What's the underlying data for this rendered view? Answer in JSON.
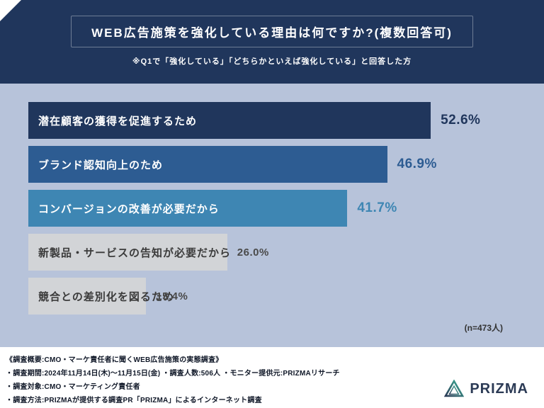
{
  "header": {
    "title": "WEB広告施策を強化している理由は何ですか?(複数回答可)",
    "subtitle": "※Q1で「強化している」「どちらかといえば強化している」と回答した方"
  },
  "chart_data": {
    "type": "bar",
    "orientation": "horizontal",
    "title": "WEB広告施策を強化している理由は何ですか?(複数回答可)",
    "categories": [
      "潜在顧客の獲得を促進するため",
      "ブランド認知向上のため",
      "コンバージョンの改善が必要だから",
      "新製品・サービスの告知が必要だから",
      "競合との差別化を図るため"
    ],
    "values": [
      52.6,
      46.9,
      41.7,
      26.0,
      15.4
    ],
    "value_labels": [
      "52.6%",
      "46.9%",
      "41.7%",
      "26.0%",
      "15.4%"
    ],
    "bar_colors": [
      "#20365c",
      "#2d5c92",
      "#3e86b3",
      "#d2d4d7",
      "#d2d4d7"
    ],
    "label_colors": [
      "#ffffff",
      "#ffffff",
      "#ffffff",
      "#3b3b3b",
      "#3b3b3b"
    ],
    "value_colors": [
      "#20365c",
      "#2d5c92",
      "#3e86b3",
      "#4a4a4a",
      "#4a4a4a"
    ],
    "xlim": [
      0,
      60
    ],
    "grid": false,
    "legend": false,
    "note": "(n=473人)"
  },
  "footer": {
    "lines": [
      "《調査概要:CMO・マーケ責任者に聞くWEB広告施策の実態調査》",
      "・調査期間:2024年11月14日(木)〜11月15日(金) ・調査人数:506人 ・モニター提供元:PRIZMAリサーチ",
      "・調査対象:CMO・マーケティング責任者",
      "・調査方法:PRIZMAが提供する調査PR「PRIZMA」によるインターネット調査"
    ],
    "logo_text": "PRIZMA"
  }
}
